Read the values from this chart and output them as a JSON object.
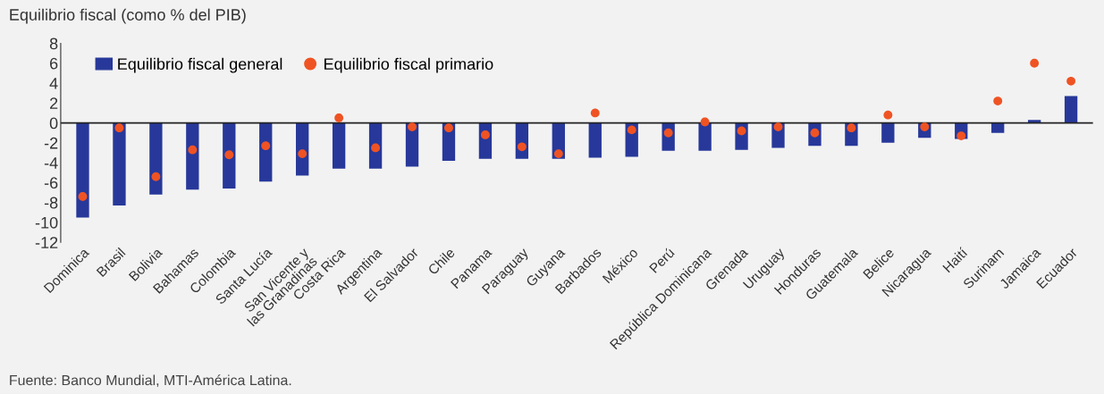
{
  "chart_data": {
    "type": "bar",
    "ylabel": "Equilibrio fiscal (como % del PIB)",
    "categories": [
      "Dominica",
      "Brasil",
      "Bolivia",
      "Bahamas",
      "Colombia",
      "Santa Lucía",
      "San Vicente y\nlas Granadinas",
      "Costa Rica",
      "Argentina",
      "El Salvador",
      "Chile",
      "Panama",
      "Paraguay",
      "Guyana",
      "Barbados",
      "México",
      "Perú",
      "República Dominicana",
      "Grenada",
      "Uruguay",
      "Honduras",
      "Guatemala",
      "Belice",
      "Nicaragua",
      "Haití",
      "Surinam",
      "Jamaica",
      "Ecuador"
    ],
    "series": [
      {
        "name": "Equilibrio fiscal general",
        "type": "bar",
        "color": "#27389a",
        "values": [
          -9.5,
          -8.3,
          -7.2,
          -6.7,
          -6.6,
          -5.9,
          -5.3,
          -4.6,
          -4.6,
          -4.4,
          -3.8,
          -3.6,
          -3.6,
          -3.6,
          -3.5,
          -3.4,
          -2.8,
          -2.8,
          -2.7,
          -2.5,
          -2.3,
          -2.3,
          -2.0,
          -1.5,
          -1.6,
          -1.0,
          0.3,
          2.7
        ]
      },
      {
        "name": "Equilibrio fiscal primario",
        "type": "scatter",
        "color": "#ef5323",
        "values": [
          -7.4,
          -0.5,
          -5.4,
          -2.7,
          -3.2,
          -2.3,
          -3.1,
          0.5,
          -2.5,
          -0.4,
          -0.5,
          -1.2,
          -2.4,
          -3.1,
          1.0,
          -0.7,
          -1.0,
          0.1,
          -0.8,
          -0.4,
          -1.0,
          -0.5,
          0.8,
          -0.4,
          -1.3,
          2.2,
          6.0,
          4.2
        ]
      }
    ],
    "ylim": [
      -12,
      8
    ],
    "yticks": [
      -12,
      -10,
      -8,
      -6,
      -4,
      -2,
      0,
      2,
      4,
      6,
      8
    ],
    "marker": "circle",
    "legend": "top left",
    "annotations": [
      "Fuente: Banco Mundial, MTI-América Latina."
    ]
  }
}
